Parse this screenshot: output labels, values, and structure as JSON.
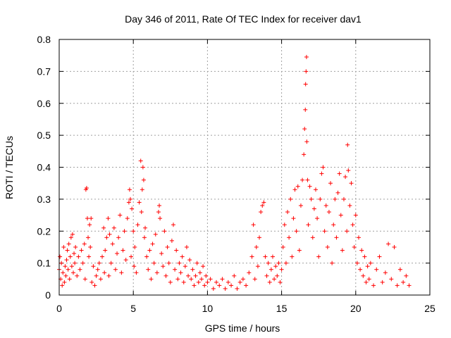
{
  "chart_data": {
    "type": "scatter",
    "title": "Day 346 of 2011, Rate Of TEC Index for receiver dav1",
    "xlabel": "GPS time / hours",
    "ylabel": "ROTI / TECUs",
    "xlim": [
      0,
      25
    ],
    "ylim": [
      0,
      0.8
    ],
    "xticks": [
      0,
      5,
      10,
      15,
      20,
      25
    ],
    "xtick_labels": [
      "0",
      "5",
      "10",
      "15",
      "20",
      "25"
    ],
    "yticks": [
      0,
      0.1,
      0.2,
      0.3,
      0.4,
      0.5,
      0.6,
      0.7,
      0.8
    ],
    "ytick_labels": [
      "0",
      "0.1",
      "0.2",
      "0.3",
      "0.4",
      "0.5",
      "0.6",
      "0.7",
      "0.8"
    ],
    "grid": true,
    "marker": "+",
    "color": "#ff0000",
    "series": [
      {
        "points": [
          [
            0.0,
            0.08
          ],
          [
            0.05,
            0.12
          ],
          [
            0.1,
            0.05
          ],
          [
            0.15,
            0.1
          ],
          [
            0.2,
            0.03
          ],
          [
            0.25,
            0.07
          ],
          [
            0.3,
            0.15
          ],
          [
            0.35,
            0.04
          ],
          [
            0.4,
            0.09
          ],
          [
            0.45,
            0.06
          ],
          [
            0.5,
            0.11
          ],
          [
            0.55,
            0.14
          ],
          [
            0.6,
            0.08
          ],
          [
            0.65,
            0.16
          ],
          [
            0.7,
            0.05
          ],
          [
            0.75,
            0.12
          ],
          [
            0.8,
            0.18
          ],
          [
            0.85,
            0.09
          ],
          [
            0.9,
            0.19
          ],
          [
            0.95,
            0.07
          ],
          [
            1.0,
            0.13
          ],
          [
            1.05,
            0.1
          ],
          [
            1.1,
            0.15
          ],
          [
            1.2,
            0.06
          ],
          [
            1.3,
            0.12
          ],
          [
            1.4,
            0.08
          ],
          [
            1.5,
            0.14
          ],
          [
            1.6,
            0.1
          ],
          [
            1.7,
            0.16
          ],
          [
            1.75,
            0.05
          ],
          [
            1.8,
            0.33
          ],
          [
            1.85,
            0.335
          ],
          [
            1.9,
            0.24
          ],
          [
            1.95,
            0.18
          ],
          [
            2.0,
            0.12
          ],
          [
            2.05,
            0.22
          ],
          [
            2.1,
            0.15
          ],
          [
            2.15,
            0.24
          ],
          [
            2.2,
            0.04
          ],
          [
            2.3,
            0.09
          ],
          [
            2.4,
            0.03
          ],
          [
            2.5,
            0.06
          ],
          [
            2.6,
            0.08
          ],
          [
            2.7,
            0.1
          ],
          [
            2.8,
            0.05
          ],
          [
            2.9,
            0.12
          ],
          [
            3.0,
            0.21
          ],
          [
            3.05,
            0.07
          ],
          [
            3.1,
            0.14
          ],
          [
            3.2,
            0.18
          ],
          [
            3.3,
            0.24
          ],
          [
            3.35,
            0.06
          ],
          [
            3.4,
            0.19
          ],
          [
            3.5,
            0.1
          ],
          [
            3.6,
            0.16
          ],
          [
            3.7,
            0.21
          ],
          [
            3.8,
            0.08
          ],
          [
            3.9,
            0.13
          ],
          [
            4.0,
            0.18
          ],
          [
            4.1,
            0.25
          ],
          [
            4.2,
            0.07
          ],
          [
            4.3,
            0.14
          ],
          [
            4.4,
            0.2
          ],
          [
            4.5,
            0.11
          ],
          [
            4.6,
            0.24
          ],
          [
            4.7,
            0.29
          ],
          [
            4.75,
            0.33
          ],
          [
            4.8,
            0.3
          ],
          [
            4.85,
            0.12
          ],
          [
            4.9,
            0.27
          ],
          [
            5.0,
            0.2
          ],
          [
            5.05,
            0.09
          ],
          [
            5.1,
            0.15
          ],
          [
            5.2,
            0.07
          ],
          [
            5.3,
            0.22
          ],
          [
            5.4,
            0.29
          ],
          [
            5.5,
            0.42
          ],
          [
            5.55,
            0.26
          ],
          [
            5.6,
            0.33
          ],
          [
            5.65,
            0.4
          ],
          [
            5.7,
            0.36
          ],
          [
            5.75,
            0.18
          ],
          [
            5.8,
            0.21
          ],
          [
            5.9,
            0.12
          ],
          [
            6.0,
            0.08
          ],
          [
            6.1,
            0.14
          ],
          [
            6.2,
            0.05
          ],
          [
            6.3,
            0.16
          ],
          [
            6.4,
            0.1
          ],
          [
            6.5,
            0.19
          ],
          [
            6.6,
            0.07
          ],
          [
            6.7,
            0.26
          ],
          [
            6.75,
            0.28
          ],
          [
            6.8,
            0.24
          ],
          [
            6.9,
            0.13
          ],
          [
            7.0,
            0.09
          ],
          [
            7.1,
            0.2
          ],
          [
            7.2,
            0.06
          ],
          [
            7.3,
            0.15
          ],
          [
            7.4,
            0.1
          ],
          [
            7.5,
            0.04
          ],
          [
            7.6,
            0.17
          ],
          [
            7.7,
            0.22
          ],
          [
            7.8,
            0.08
          ],
          [
            7.9,
            0.14
          ],
          [
            8.0,
            0.05
          ],
          [
            8.1,
            0.1
          ],
          [
            8.2,
            0.07
          ],
          [
            8.3,
            0.12
          ],
          [
            8.4,
            0.04
          ],
          [
            8.5,
            0.09
          ],
          [
            8.6,
            0.15
          ],
          [
            8.7,
            0.06
          ],
          [
            8.8,
            0.11
          ],
          [
            8.9,
            0.05
          ],
          [
            9.0,
            0.08
          ],
          [
            9.1,
            0.03
          ],
          [
            9.2,
            0.06
          ],
          [
            9.3,
            0.1
          ],
          [
            9.4,
            0.04
          ],
          [
            9.5,
            0.07
          ],
          [
            9.6,
            0.05
          ],
          [
            9.7,
            0.09
          ],
          [
            9.8,
            0.03
          ],
          [
            9.9,
            0.06
          ],
          [
            10.0,
            0.04
          ],
          [
            10.2,
            0.05
          ],
          [
            10.4,
            0.02
          ],
          [
            10.6,
            0.04
          ],
          [
            10.8,
            0.03
          ],
          [
            11.0,
            0.05
          ],
          [
            11.2,
            0.02
          ],
          [
            11.4,
            0.04
          ],
          [
            11.6,
            0.03
          ],
          [
            11.8,
            0.06
          ],
          [
            12.0,
            0.02
          ],
          [
            12.2,
            0.04
          ],
          [
            12.4,
            0.05
          ],
          [
            12.6,
            0.03
          ],
          [
            12.8,
            0.07
          ],
          [
            13.0,
            0.12
          ],
          [
            13.1,
            0.22
          ],
          [
            13.2,
            0.05
          ],
          [
            13.3,
            0.15
          ],
          [
            13.4,
            0.09
          ],
          [
            13.5,
            0.18
          ],
          [
            13.6,
            0.26
          ],
          [
            13.7,
            0.28
          ],
          [
            13.8,
            0.29
          ],
          [
            13.9,
            0.12
          ],
          [
            14.0,
            0.06
          ],
          [
            14.1,
            0.1
          ],
          [
            14.2,
            0.04
          ],
          [
            14.3,
            0.08
          ],
          [
            14.4,
            0.12
          ],
          [
            14.5,
            0.05
          ],
          [
            14.6,
            0.09
          ],
          [
            14.7,
            0.06
          ],
          [
            14.8,
            0.1
          ],
          [
            14.9,
            0.04
          ],
          [
            15.0,
            0.08
          ],
          [
            15.1,
            0.15
          ],
          [
            15.2,
            0.22
          ],
          [
            15.3,
            0.1
          ],
          [
            15.4,
            0.26
          ],
          [
            15.5,
            0.18
          ],
          [
            15.6,
            0.3
          ],
          [
            15.7,
            0.12
          ],
          [
            15.8,
            0.24
          ],
          [
            15.9,
            0.33
          ],
          [
            16.0,
            0.2
          ],
          [
            16.1,
            0.34
          ],
          [
            16.2,
            0.14
          ],
          [
            16.3,
            0.28
          ],
          [
            16.4,
            0.36
          ],
          [
            16.5,
            0.44
          ],
          [
            16.55,
            0.52
          ],
          [
            16.6,
            0.58
          ],
          [
            16.62,
            0.66
          ],
          [
            16.65,
            0.7
          ],
          [
            16.68,
            0.745
          ],
          [
            16.7,
            0.48
          ],
          [
            16.75,
            0.36
          ],
          [
            16.8,
            0.22
          ],
          [
            16.9,
            0.34
          ],
          [
            17.0,
            0.3
          ],
          [
            17.1,
            0.18
          ],
          [
            17.2,
            0.27
          ],
          [
            17.3,
            0.33
          ],
          [
            17.4,
            0.24
          ],
          [
            17.5,
            0.12
          ],
          [
            17.6,
            0.3
          ],
          [
            17.7,
            0.38
          ],
          [
            17.8,
            0.4
          ],
          [
            17.9,
            0.2
          ],
          [
            18.0,
            0.28
          ],
          [
            18.1,
            0.15
          ],
          [
            18.2,
            0.26
          ],
          [
            18.3,
            0.35
          ],
          [
            18.4,
            0.1
          ],
          [
            18.5,
            0.22
          ],
          [
            18.6,
            0.3
          ],
          [
            18.7,
            0.18
          ],
          [
            18.8,
            0.32
          ],
          [
            18.9,
            0.38
          ],
          [
            19.0,
            0.25
          ],
          [
            19.1,
            0.14
          ],
          [
            19.2,
            0.3
          ],
          [
            19.3,
            0.37
          ],
          [
            19.4,
            0.2
          ],
          [
            19.45,
            0.47
          ],
          [
            19.5,
            0.39
          ],
          [
            19.6,
            0.28
          ],
          [
            19.7,
            0.35
          ],
          [
            19.8,
            0.22
          ],
          [
            19.9,
            0.15
          ],
          [
            20.0,
            0.25
          ],
          [
            20.1,
            0.1
          ],
          [
            20.2,
            0.18
          ],
          [
            20.3,
            0.08
          ],
          [
            20.4,
            0.14
          ],
          [
            20.5,
            0.06
          ],
          [
            20.6,
            0.12
          ],
          [
            20.7,
            0.04
          ],
          [
            20.8,
            0.09
          ],
          [
            20.9,
            0.05
          ],
          [
            21.0,
            0.1
          ],
          [
            21.2,
            0.03
          ],
          [
            21.4,
            0.08
          ],
          [
            21.6,
            0.12
          ],
          [
            21.8,
            0.04
          ],
          [
            22.0,
            0.07
          ],
          [
            22.2,
            0.16
          ],
          [
            22.4,
            0.05
          ],
          [
            22.6,
            0.15
          ],
          [
            22.8,
            0.03
          ],
          [
            23.0,
            0.08
          ],
          [
            23.2,
            0.04
          ],
          [
            23.4,
            0.06
          ],
          [
            23.6,
            0.03
          ]
        ]
      }
    ]
  }
}
